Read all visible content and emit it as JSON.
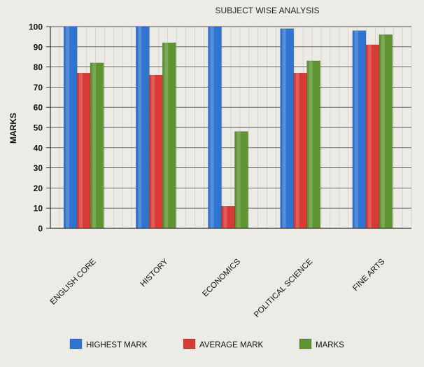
{
  "chart_data": {
    "type": "bar",
    "title": "SUBJECT WISE ANALYSIS",
    "xlabel": "",
    "ylabel": "MARKS",
    "ylim": [
      0,
      100
    ],
    "yticks": [
      0,
      10,
      20,
      30,
      40,
      50,
      60,
      70,
      80,
      90,
      100
    ],
    "grid": true,
    "legend_position": "bottom",
    "categories": [
      "ENGLISH CORE",
      "HISTORY",
      "ECONOMICS",
      "POLITICAL SCIENCE",
      "FINE ARTS"
    ],
    "series": [
      {
        "name": "HIGHEST MARK",
        "color": "#2f74d0",
        "values": [
          100,
          100,
          100,
          99,
          98
        ]
      },
      {
        "name": "AVERAGE MARK",
        "color": "#d83a35",
        "values": [
          77,
          76,
          11,
          77,
          91
        ]
      },
      {
        "name": "MARKS",
        "color": "#5e9432",
        "values": [
          82,
          92,
          48,
          83,
          96
        ]
      }
    ]
  }
}
